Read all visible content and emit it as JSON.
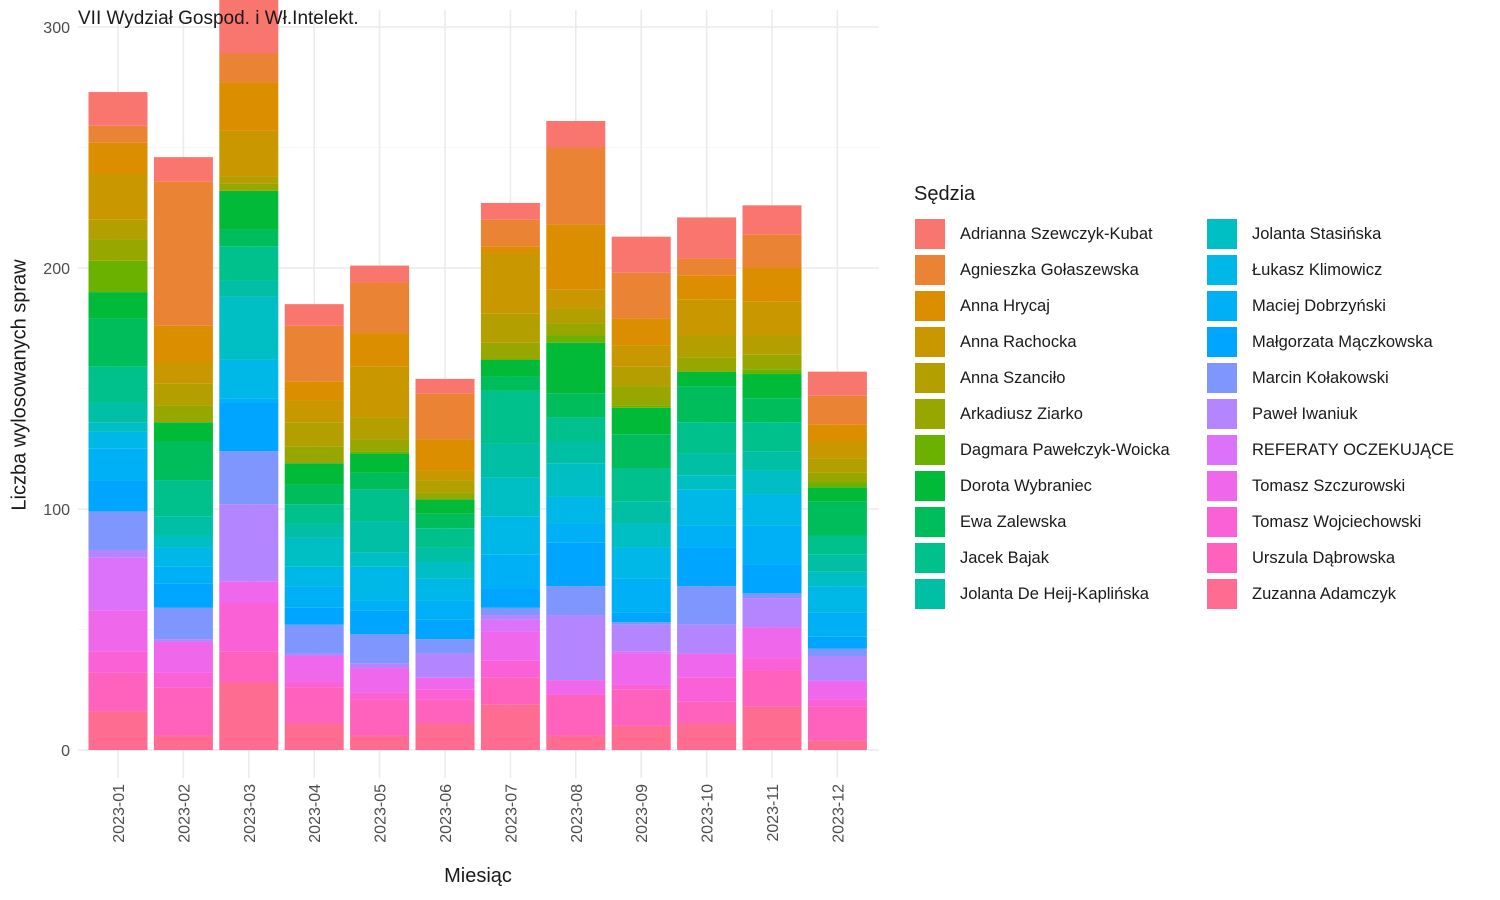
{
  "chart_data": {
    "type": "bar",
    "stacked": true,
    "title": "VII Wydział Gospod. i Wł.Intelekt.",
    "xlabel": "Miesiąc",
    "ylabel": "Liczba wylosowanych spraw",
    "legend_title": "Sędzia",
    "legend_position": "right",
    "grid": true,
    "ylim": [
      0,
      300
    ],
    "yticks": [
      0,
      100,
      200,
      300
    ],
    "categories": [
      "2023-01",
      "2023-02",
      "2023-03",
      "2023-04",
      "2023-05",
      "2023-06",
      "2023-07",
      "2023-08",
      "2023-09",
      "2023-10",
      "2023-11",
      "2023-12"
    ],
    "series": [
      {
        "name": "Adrianna Szewczyk-Kubat",
        "color": "#F8766D",
        "values": [
          14,
          10,
          23,
          9,
          7,
          6,
          7,
          11,
          15,
          17,
          12,
          10
        ]
      },
      {
        "name": "Agnieszka Gołaszewska",
        "color": "#EB8335",
        "values": [
          7,
          60,
          12,
          23,
          21,
          19,
          11,
          32,
          19,
          7,
          14,
          12
        ]
      },
      {
        "name": "Anna Hrycaj",
        "color": "#DB8E00",
        "values": [
          13,
          15,
          20,
          8,
          14,
          13,
          3,
          27,
          11,
          10,
          14,
          7
        ]
      },
      {
        "name": "Anna Rachocka",
        "color": "#C99800",
        "values": [
          19,
          9,
          19,
          9,
          21,
          4,
          25,
          8,
          9,
          15,
          14,
          7
        ]
      },
      {
        "name": "Anna Szanciło",
        "color": "#B3A000",
        "values": [
          8,
          9,
          3,
          10,
          9,
          5,
          12,
          6,
          8,
          9,
          8,
          6
        ]
      },
      {
        "name": "Arkadiusz Ziarko",
        "color": "#98A600",
        "values": [
          9,
          7,
          3,
          7,
          5,
          3,
          7,
          5,
          8,
          6,
          6,
          4
        ]
      },
      {
        "name": "Dagmara Pawełczyk-Woicka",
        "color": "#6BB100",
        "values": [
          13,
          0,
          0,
          0,
          1,
          0,
          0,
          3,
          1,
          0,
          2,
          2
        ]
      },
      {
        "name": "Dorota Wybraniec",
        "color": "#00BA38",
        "values": [
          11,
          8,
          16,
          9,
          8,
          6,
          7,
          21,
          11,
          6,
          10,
          6
        ]
      },
      {
        "name": "Ewa Zalewska",
        "color": "#00BD5C",
        "values": [
          20,
          16,
          7,
          8,
          7,
          6,
          6,
          10,
          14,
          15,
          10,
          14
        ]
      },
      {
        "name": "Jacek Bajak",
        "color": "#00C08B",
        "values": [
          15,
          15,
          14,
          8,
          13,
          8,
          22,
          10,
          14,
          13,
          12,
          8
        ]
      },
      {
        "name": "Jolanta De Heij-Kaplińska",
        "color": "#00BFA5",
        "values": [
          8,
          8,
          7,
          6,
          13,
          6,
          14,
          9,
          9,
          9,
          8,
          7
        ]
      },
      {
        "name": "Jolanta Stasińska",
        "color": "#00BFC4",
        "values": [
          4,
          5,
          26,
          12,
          6,
          7,
          16,
          14,
          10,
          6,
          10,
          6
        ]
      },
      {
        "name": "Łukasz Klimowicz",
        "color": "#00B8E7",
        "values": [
          7,
          8,
          16,
          8,
          14,
          9,
          16,
          11,
          13,
          15,
          13,
          11
        ]
      },
      {
        "name": "Maciej Dobrzyński",
        "color": "#00B0F6",
        "values": [
          13,
          7,
          2,
          9,
          4,
          8,
          14,
          8,
          14,
          9,
          16,
          10
        ]
      },
      {
        "name": "Małgorzata Mączkowska",
        "color": "#00A5FF",
        "values": [
          13,
          10,
          20,
          7,
          10,
          8,
          8,
          18,
          4,
          16,
          12,
          5
        ]
      },
      {
        "name": "Marcin Kołakowski",
        "color": "#7F96FF",
        "values": [
          16,
          13,
          22,
          12,
          12,
          6,
          3,
          12,
          1,
          16,
          2,
          3
        ]
      },
      {
        "name": "Paweł Iwaniuk",
        "color": "#B385FF",
        "values": [
          3,
          1,
          32,
          1,
          2,
          10,
          2,
          27,
          11,
          12,
          12,
          10
        ]
      },
      {
        "name": "REFERATY OCZEKUJĄCE",
        "color": "#DC71FA",
        "values": [
          22,
          0,
          0,
          0,
          0,
          0,
          5,
          0,
          1,
          0,
          0,
          1
        ]
      },
      {
        "name": "Tomasz Szczurowski",
        "color": "#EF67EB",
        "values": [
          17,
          13,
          9,
          11,
          10,
          5,
          12,
          6,
          13,
          10,
          13,
          7
        ]
      },
      {
        "name": "Tomasz Wojciechowski",
        "color": "#FB61D7",
        "values": [
          9,
          6,
          20,
          2,
          3,
          4,
          7,
          0,
          2,
          10,
          5,
          3
        ]
      },
      {
        "name": "Urszula Dąbrowska",
        "color": "#FF62BC",
        "values": [
          16,
          20,
          13,
          15,
          15,
          10,
          11,
          17,
          15,
          9,
          15,
          14
        ]
      },
      {
        "name": "Zuzanna Adamczyk",
        "color": "#FF6C91",
        "values": [
          16,
          6,
          28,
          11,
          6,
          11,
          19,
          6,
          10,
          11,
          18,
          4
        ]
      }
    ]
  }
}
